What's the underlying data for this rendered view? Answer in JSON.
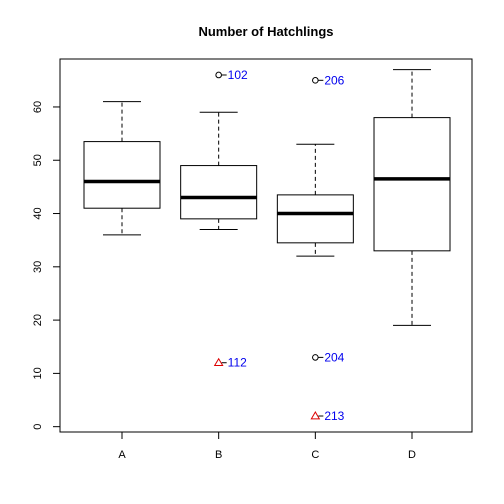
{
  "chart_data": {
    "type": "box",
    "title": "Number of Hatchlings",
    "xlabel": "",
    "ylabel": "",
    "ylim": [
      -1,
      69
    ],
    "yticks": [
      0,
      10,
      20,
      30,
      40,
      50,
      60
    ],
    "categories": [
      "A",
      "B",
      "C",
      "D"
    ],
    "boxes": [
      {
        "category": "A",
        "whisker_low": 36,
        "q1": 41,
        "median": 46,
        "q3": 53.5,
        "whisker_high": 61
      },
      {
        "category": "B",
        "whisker_low": 37,
        "q1": 39,
        "median": 43,
        "q3": 49,
        "whisker_high": 59
      },
      {
        "category": "C",
        "whisker_low": 32,
        "q1": 34.5,
        "median": 40,
        "q3": 43.5,
        "whisker_high": 53
      },
      {
        "category": "D",
        "whisker_low": 19,
        "q1": 33,
        "median": 46.5,
        "q3": 58,
        "whisker_high": 67
      }
    ],
    "outliers": [
      {
        "category": "B",
        "value": 66,
        "label": "102",
        "marker": "circle"
      },
      {
        "category": "B",
        "value": 12,
        "label": "112",
        "marker": "triangle"
      },
      {
        "category": "C",
        "value": 65,
        "label": "206",
        "marker": "circle"
      },
      {
        "category": "C",
        "value": 13,
        "label": "204",
        "marker": "circle"
      },
      {
        "category": "C",
        "value": 2,
        "label": "213",
        "marker": "triangle"
      }
    ],
    "colors": {
      "label": "#0000ee",
      "triangle": "#dd0000",
      "box": "#000000"
    }
  }
}
